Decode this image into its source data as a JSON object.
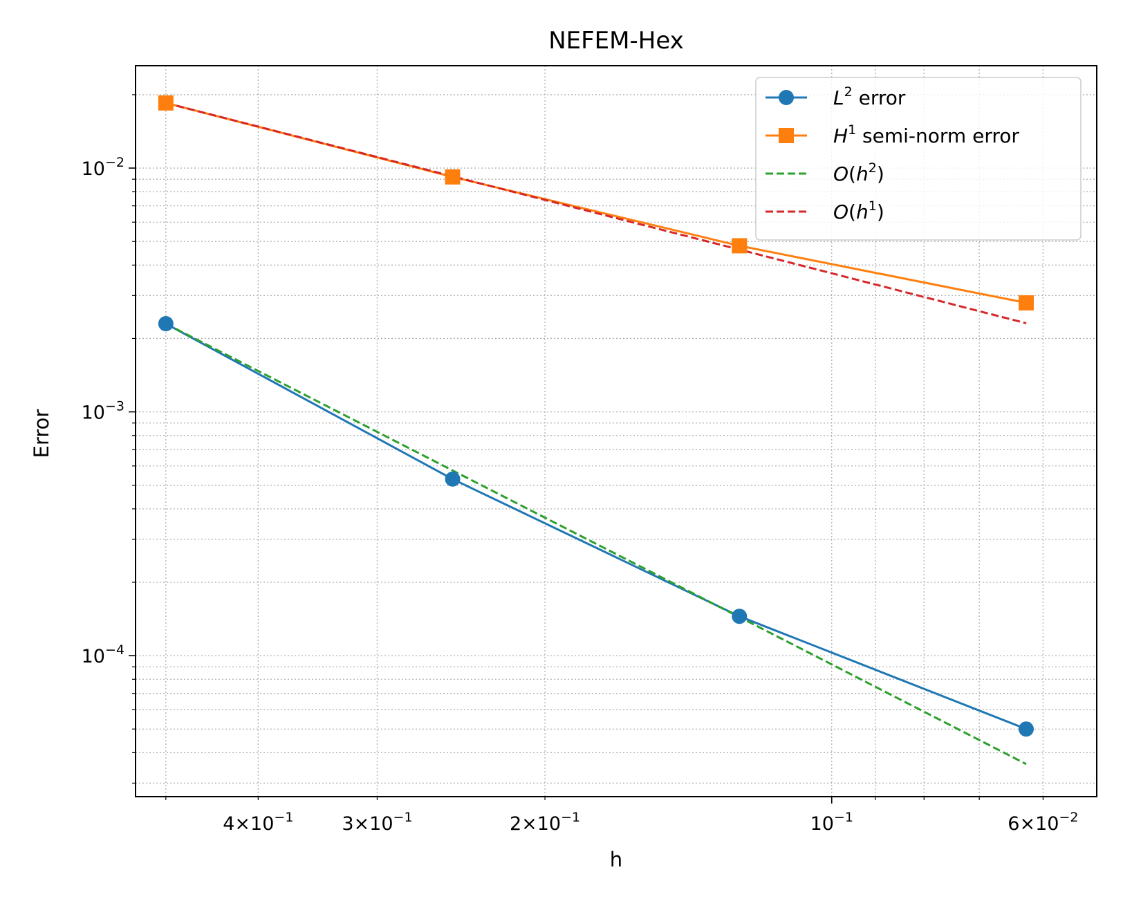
{
  "chart_data": {
    "type": "line",
    "title": "NEFEM-Hex",
    "xlabel": "h",
    "ylabel": "Error",
    "xscale": "log",
    "yscale": "log",
    "x_inverted": true,
    "xlim": [
      0.0527,
      0.538
    ],
    "ylim": [
      2.64e-05,
      0.0263
    ],
    "grid": "both (dotted)",
    "legend_position": "upper right",
    "x": [
      0.5,
      0.25,
      0.125,
      0.0625
    ],
    "series": [
      {
        "name": "L2 error",
        "label_main": "L",
        "label_sup": "2",
        "label_rest": " error",
        "style": "solid",
        "marker": "circle",
        "color": "#1f77b4",
        "values": [
          0.0023,
          0.00053,
          0.000145,
          5e-05
        ]
      },
      {
        "name": "H1 semi-norm error",
        "label_main": "H",
        "label_sup": "1",
        "label_rest": " semi-norm error",
        "style": "solid",
        "marker": "square",
        "color": "#ff7f0e",
        "values": [
          0.0185,
          0.0092,
          0.0048,
          0.0028
        ]
      },
      {
        "name": "O(h2)",
        "label_pre": "O(",
        "label_main": "h",
        "label_sup": "2",
        "label_rest": ")",
        "style": "dashed",
        "marker": "none",
        "color": "#2ca02c",
        "values": [
          0.0023,
          0.000575,
          0.000144,
          3.59e-05
        ]
      },
      {
        "name": "O(h1)",
        "label_pre": "O(",
        "label_main": "h",
        "label_sup": "1",
        "label_rest": ")",
        "style": "dashed",
        "marker": "none",
        "color": "#d62728",
        "values": [
          0.0185,
          0.00925,
          0.00463,
          0.00231
        ]
      }
    ],
    "x_ticks": [
      {
        "value": 0.4,
        "mantissa": "4",
        "exp": "−1"
      },
      {
        "value": 0.3,
        "mantissa": "3",
        "exp": "−1"
      },
      {
        "value": 0.2,
        "mantissa": "2",
        "exp": "−1"
      },
      {
        "value": 0.1,
        "mantissa": "",
        "exp": "−1"
      },
      {
        "value": 0.06,
        "mantissa": "6",
        "exp": "−2"
      }
    ],
    "y_ticks": [
      {
        "value": 0.01,
        "exp": "−2"
      },
      {
        "value": 0.001,
        "exp": "−3"
      },
      {
        "value": 0.0001,
        "exp": "−4"
      }
    ]
  }
}
